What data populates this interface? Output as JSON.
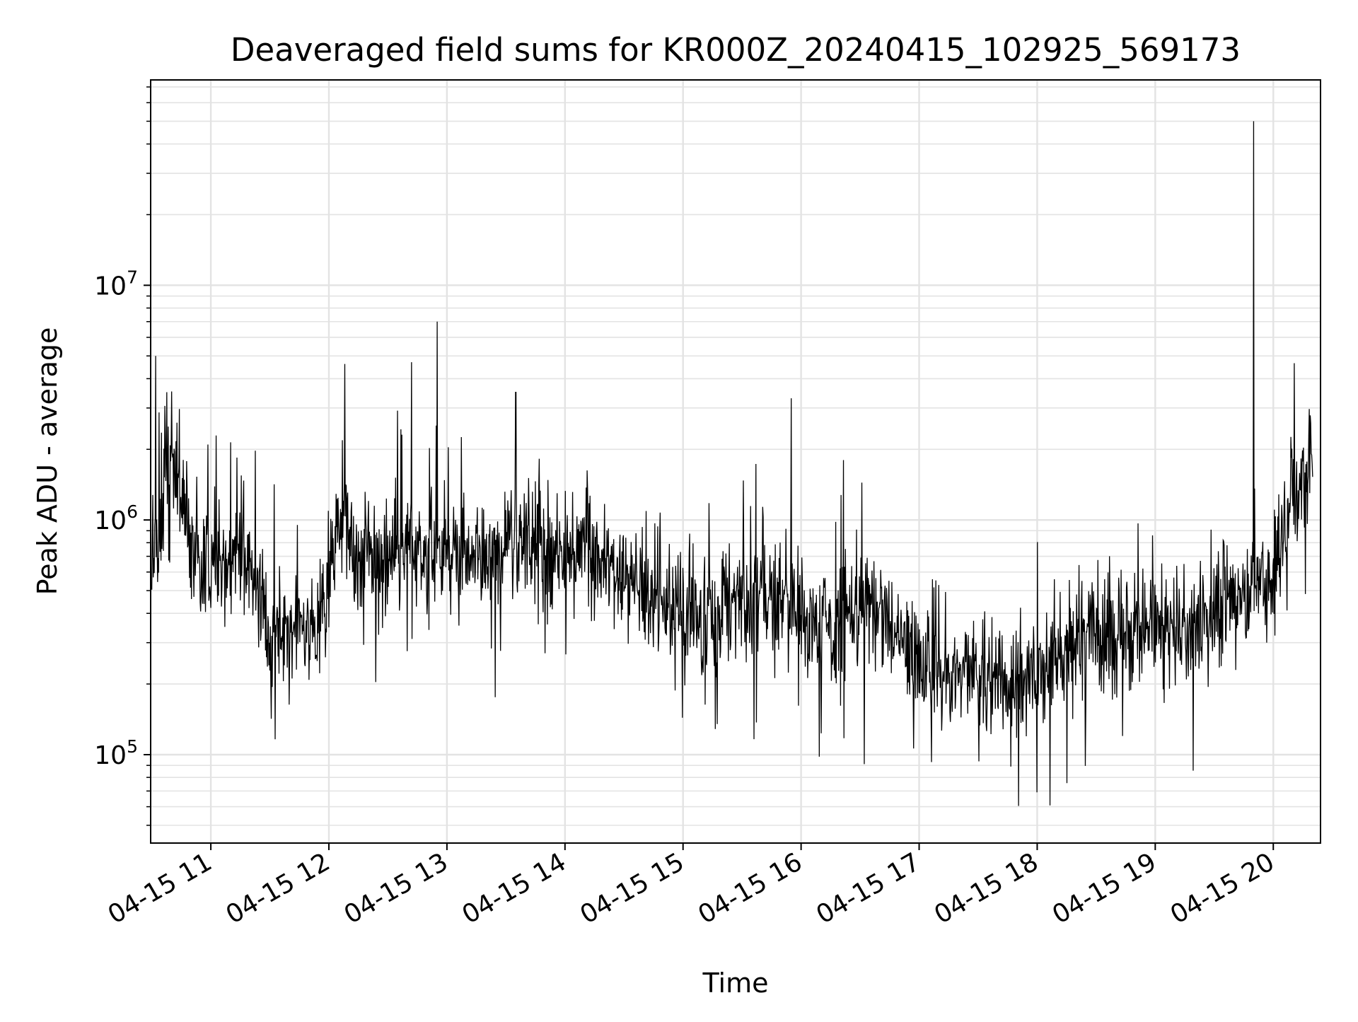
{
  "chart_data": {
    "type": "line",
    "title": "Deaveraged field sums for KR000Z_20240415_102925_569173",
    "xlabel": "Time",
    "ylabel": "Peak ADU - average",
    "yscale": "log",
    "ylim": [
      42000,
      75000000
    ],
    "xlim": [
      "04-15 10:29:25",
      "04-15 20:24:00"
    ],
    "grid": true,
    "line_color": "#000000",
    "x_ticks": [
      "04-15 11",
      "04-15 12",
      "04-15 13",
      "04-15 14",
      "04-15 15",
      "04-15 16",
      "04-15 17",
      "04-15 18",
      "04-15 19",
      "04-15 20"
    ],
    "y_ticks": [
      {
        "base": "10",
        "exp": "5",
        "value": 100000
      },
      {
        "base": "10",
        "exp": "6",
        "value": 1000000
      },
      {
        "base": "10",
        "exp": "7",
        "value": 10000000
      }
    ],
    "series": [
      {
        "color": "#000000",
        "x": [
          "10:30",
          "10:32",
          "10:35",
          "10:38",
          "10:40",
          "10:43",
          "10:45",
          "10:50",
          "10:55",
          "11:00",
          "11:05",
          "11:10",
          "11:15",
          "11:20",
          "11:25",
          "11:30",
          "11:35",
          "11:40",
          "11:45",
          "11:50",
          "11:55",
          "12:00",
          "12:05",
          "12:10",
          "12:15",
          "12:20",
          "12:30",
          "12:40",
          "12:42",
          "12:50",
          "12:55",
          "13:00",
          "13:10",
          "13:20",
          "13:30",
          "13:35",
          "13:45",
          "14:00",
          "14:15",
          "14:30",
          "14:45",
          "15:00",
          "15:15",
          "15:30",
          "15:45",
          "15:55",
          "16:00",
          "16:15",
          "16:30",
          "16:45",
          "17:00",
          "17:15",
          "17:30",
          "17:45",
          "18:00",
          "18:15",
          "18:30",
          "18:45",
          "19:00",
          "19:15",
          "19:30",
          "19:45",
          "19:50",
          "20:00",
          "20:10",
          "20:20"
        ],
        "y": [
          700000,
          5000000,
          900000,
          1800000,
          2200000,
          1500000,
          1400000,
          800000,
          600000,
          650000,
          700000,
          700000,
          750000,
          600000,
          500000,
          300000,
          350000,
          300000,
          400000,
          350000,
          300000,
          600000,
          1000000,
          800000,
          700000,
          700000,
          700000,
          800000,
          4700000,
          700000,
          7000000,
          700000,
          700000,
          700000,
          800000,
          3500000,
          750000,
          650000,
          700000,
          600000,
          450000,
          450000,
          380000,
          450000,
          500000,
          3300000,
          450000,
          330000,
          450000,
          350000,
          250000,
          220000,
          200000,
          200000,
          230000,
          260000,
          330000,
          330000,
          320000,
          350000,
          380000,
          500000,
          50000000,
          600000,
          1400000,
          1500000
        ]
      }
    ]
  }
}
